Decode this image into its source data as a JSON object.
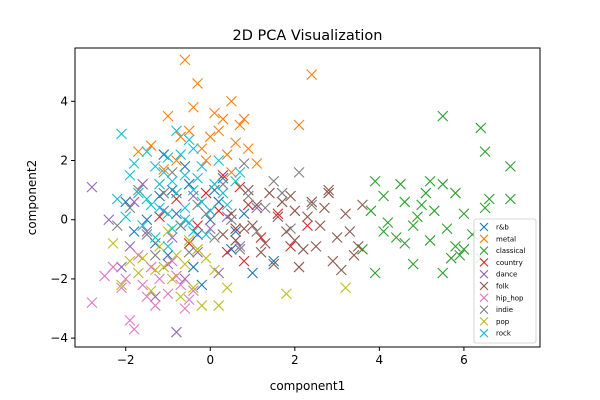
{
  "chart_data": {
    "type": "scatter",
    "title": "2D PCA Visualization",
    "xlabel": "component1",
    "ylabel": "component2",
    "xlim": [
      -3.2,
      7.8
    ],
    "ylim": [
      -4.3,
      5.8
    ],
    "xticks": [
      -2,
      0,
      2,
      4,
      6
    ],
    "yticks": [
      -4,
      -2,
      0,
      2,
      4
    ],
    "grid": false,
    "legend_position": "lower-right",
    "marker": "x",
    "series": [
      {
        "name": "r&b",
        "color": "#1f77b4",
        "points": [
          [
            -1.2,
            0.8
          ],
          [
            -0.8,
            0.2
          ],
          [
            -0.5,
            1.2
          ],
          [
            -1.5,
            0.0
          ],
          [
            -0.3,
            -0.5
          ],
          [
            0.2,
            0.6
          ],
          [
            -1.0,
            -1.2
          ],
          [
            -0.6,
            1.8
          ],
          [
            0.0,
            0.0
          ],
          [
            -1.8,
            -0.4
          ],
          [
            0.5,
            -1.0
          ],
          [
            -0.9,
            1.0
          ],
          [
            -1.3,
            -0.8
          ],
          [
            0.3,
            1.4
          ],
          [
            -0.4,
            -1.6
          ],
          [
            0.8,
            0.2
          ],
          [
            -2.0,
            0.6
          ],
          [
            1.5,
            -1.4
          ],
          [
            -0.2,
            -2.2
          ],
          [
            -1.1,
            2.2
          ],
          [
            0.6,
            -0.4
          ],
          [
            1.0,
            -1.8
          ],
          [
            -0.7,
            -0.2
          ],
          [
            0.1,
            1.0
          ]
        ]
      },
      {
        "name": "metal",
        "color": "#ff7f0e",
        "points": [
          [
            -0.6,
            5.4
          ],
          [
            -0.3,
            4.6
          ],
          [
            2.4,
            4.9
          ],
          [
            0.5,
            4.0
          ],
          [
            0.3,
            3.4
          ],
          [
            0.7,
            3.2
          ],
          [
            -1.0,
            3.5
          ],
          [
            -0.5,
            3.0
          ],
          [
            0.0,
            2.8
          ],
          [
            2.1,
            3.2
          ],
          [
            -0.2,
            2.4
          ],
          [
            0.4,
            2.2
          ],
          [
            -1.4,
            2.5
          ],
          [
            -0.8,
            2.0
          ],
          [
            0.6,
            2.6
          ],
          [
            1.1,
            1.9
          ],
          [
            -0.4,
            3.8
          ],
          [
            0.2,
            3.0
          ],
          [
            -1.7,
            2.3
          ],
          [
            0.9,
            2.4
          ],
          [
            -0.1,
            2.0
          ],
          [
            0.5,
            1.6
          ],
          [
            -0.7,
            2.8
          ],
          [
            0.8,
            3.4
          ],
          [
            -1.1,
            1.7
          ],
          [
            0.1,
            3.6
          ]
        ]
      },
      {
        "name": "classical",
        "color": "#2ca02c",
        "points": [
          [
            5.5,
            3.5
          ],
          [
            6.4,
            3.1
          ],
          [
            6.5,
            2.3
          ],
          [
            7.1,
            1.8
          ],
          [
            3.9,
            1.3
          ],
          [
            4.5,
            1.2
          ],
          [
            5.2,
            1.3
          ],
          [
            5.5,
            1.2
          ],
          [
            5.8,
            0.9
          ],
          [
            4.1,
            0.8
          ],
          [
            4.6,
            0.6
          ],
          [
            6.6,
            0.7
          ],
          [
            7.1,
            0.7
          ],
          [
            5.0,
            0.5
          ],
          [
            3.8,
            0.3
          ],
          [
            4.9,
            0.1
          ],
          [
            5.3,
            0.3
          ],
          [
            6.0,
            0.2
          ],
          [
            4.2,
            -0.1
          ],
          [
            4.8,
            -0.2
          ],
          [
            5.6,
            -0.3
          ],
          [
            6.2,
            -0.5
          ],
          [
            4.4,
            -0.6
          ],
          [
            4.6,
            -0.8
          ],
          [
            5.2,
            -0.7
          ],
          [
            5.8,
            -0.9
          ],
          [
            6.0,
            -1.0
          ],
          [
            5.7,
            -1.3
          ],
          [
            5.9,
            -1.2
          ],
          [
            6.4,
            -1.3
          ],
          [
            4.8,
            -1.5
          ],
          [
            5.5,
            -1.8
          ],
          [
            3.9,
            -1.8
          ],
          [
            3.6,
            -1.0
          ],
          [
            4.1,
            -0.4
          ],
          [
            6.5,
            0.4
          ],
          [
            5.1,
            0.9
          ]
        ]
      },
      {
        "name": "country",
        "color": "#d62728",
        "points": [
          [
            0.7,
            1.1
          ],
          [
            0.2,
            0.3
          ],
          [
            -0.3,
            -0.2
          ],
          [
            0.9,
            0.5
          ],
          [
            -0.8,
            0.7
          ],
          [
            1.2,
            -0.6
          ],
          [
            0.4,
            -1.1
          ],
          [
            -0.1,
            0.9
          ],
          [
            0.6,
            -0.3
          ],
          [
            1.6,
            0.2
          ],
          [
            -0.5,
            -0.8
          ],
          [
            0.3,
            1.5
          ],
          [
            1.9,
            -0.9
          ],
          [
            -1.2,
            0.1
          ],
          [
            0.8,
            -1.4
          ],
          [
            2.3,
            -0.2
          ]
        ]
      },
      {
        "name": "dance",
        "color": "#9467bd",
        "points": [
          [
            -2.8,
            1.1
          ],
          [
            -2.4,
            0.0
          ],
          [
            -1.9,
            -0.9
          ],
          [
            -1.5,
            -0.4
          ],
          [
            -1.0,
            -1.5
          ],
          [
            -0.8,
            -3.8
          ],
          [
            -1.3,
            -2.6
          ],
          [
            -0.6,
            -2.0
          ],
          [
            -1.8,
            0.6
          ],
          [
            -0.4,
            0.8
          ],
          [
            0.0,
            -0.3
          ],
          [
            0.4,
            0.1
          ],
          [
            -1.1,
            0.3
          ],
          [
            -2.1,
            -1.6
          ],
          [
            0.7,
            -0.9
          ],
          [
            -0.3,
            -1.1
          ],
          [
            -1.6,
            1.2
          ],
          [
            1.1,
            0.4
          ],
          [
            -0.9,
            -0.6
          ],
          [
            0.2,
            -1.8
          ]
        ]
      },
      {
        "name": "folk",
        "color": "#8c564b",
        "points": [
          [
            0.5,
            0.2
          ],
          [
            0.8,
            -0.3
          ],
          [
            1.1,
            0.5
          ],
          [
            1.3,
            -0.8
          ],
          [
            1.6,
            0.1
          ],
          [
            1.8,
            -0.4
          ],
          [
            2.0,
            0.3
          ],
          [
            2.2,
            -1.0
          ],
          [
            2.4,
            0.6
          ],
          [
            2.6,
            -0.2
          ],
          [
            2.8,
            0.9
          ],
          [
            3.0,
            -0.6
          ],
          [
            3.2,
            0.2
          ],
          [
            3.4,
            -1.2
          ],
          [
            3.6,
            0.5
          ],
          [
            1.5,
            -1.5
          ],
          [
            2.1,
            -1.6
          ],
          [
            2.9,
            -1.4
          ],
          [
            3.1,
            -1.7
          ],
          [
            1.0,
            -0.2
          ],
          [
            1.9,
            0.8
          ],
          [
            2.5,
            -0.9
          ],
          [
            0.9,
            1.0
          ],
          [
            1.7,
            0.6
          ],
          [
            2.3,
            0.1
          ],
          [
            3.3,
            -0.4
          ],
          [
            1.2,
            -1.1
          ],
          [
            2.7,
            0.4
          ],
          [
            0.6,
            -0.7
          ],
          [
            2.0,
            -0.7
          ],
          [
            3.5,
            -0.9
          ],
          [
            1.4,
            0.9
          ],
          [
            2.8,
            1.0
          ],
          [
            0.3,
            -0.5
          ]
        ]
      },
      {
        "name": "hip_hop",
        "color": "#e377c2",
        "points": [
          [
            -2.8,
            -2.8
          ],
          [
            -2.5,
            -1.9
          ],
          [
            -2.1,
            -2.3
          ],
          [
            -1.9,
            -3.4
          ],
          [
            -1.8,
            -3.7
          ],
          [
            -1.6,
            -2.2
          ],
          [
            -1.4,
            -1.6
          ],
          [
            -1.3,
            -2.9
          ],
          [
            -1.0,
            -2.5
          ],
          [
            -0.8,
            -1.9
          ],
          [
            -0.6,
            -3.0
          ],
          [
            -0.4,
            -2.4
          ],
          [
            -2.3,
            -1.6
          ],
          [
            -1.7,
            -1.2
          ],
          [
            -1.2,
            -2.0
          ],
          [
            -0.9,
            -1.4
          ],
          [
            -0.5,
            -2.7
          ],
          [
            -1.5,
            -2.6
          ],
          [
            -2.0,
            -2.0
          ],
          [
            -0.7,
            -2.2
          ]
        ]
      },
      {
        "name": "indie",
        "color": "#7f7f7f",
        "points": [
          [
            2.1,
            1.6
          ],
          [
            1.7,
            0.9
          ],
          [
            1.3,
            0.4
          ],
          [
            0.9,
            0.8
          ],
          [
            0.5,
            0.0
          ],
          [
            0.1,
            -0.6
          ],
          [
            -0.3,
            0.5
          ],
          [
            -0.7,
            -0.2
          ],
          [
            -1.1,
            0.9
          ],
          [
            -1.5,
            -0.5
          ],
          [
            -1.9,
            0.4
          ],
          [
            -2.2,
            -0.2
          ],
          [
            0.3,
            1.2
          ],
          [
            0.7,
            -1.0
          ],
          [
            1.1,
            -0.4
          ],
          [
            1.5,
            1.3
          ],
          [
            -0.5,
            -1.1
          ],
          [
            -0.9,
            1.6
          ],
          [
            -1.3,
            -1.2
          ],
          [
            2.4,
            0.5
          ],
          [
            1.9,
            -0.3
          ],
          [
            0.8,
            1.9
          ],
          [
            -0.1,
            0.2
          ],
          [
            -1.7,
            1.0
          ]
        ]
      },
      {
        "name": "pop",
        "color": "#bcbd22",
        "points": [
          [
            -2.1,
            -2.2
          ],
          [
            -1.7,
            -1.8
          ],
          [
            -1.4,
            -2.4
          ],
          [
            -1.1,
            -1.6
          ],
          [
            -0.9,
            -2.0
          ],
          [
            -0.6,
            -1.5
          ],
          [
            -0.4,
            -2.3
          ],
          [
            -0.2,
            -2.9
          ],
          [
            0.2,
            -2.9
          ],
          [
            -0.8,
            -1.2
          ],
          [
            -1.2,
            -0.9
          ],
          [
            -1.6,
            -1.3
          ],
          [
            -0.3,
            -1.0
          ],
          [
            0.1,
            -1.7
          ],
          [
            -1.9,
            -1.4
          ],
          [
            -0.7,
            -2.6
          ],
          [
            1.8,
            -2.5
          ],
          [
            3.2,
            -2.3
          ],
          [
            -1.0,
            -0.4
          ],
          [
            -0.5,
            -0.7
          ],
          [
            -2.3,
            -0.8
          ],
          [
            -1.3,
            -1.7
          ],
          [
            0.4,
            -2.3
          ],
          [
            -0.1,
            -1.3
          ]
        ]
      },
      {
        "name": "rock",
        "color": "#17becf",
        "points": [
          [
            -2.1,
            2.9
          ],
          [
            -1.5,
            2.3
          ],
          [
            -1.3,
            1.8
          ],
          [
            -1.0,
            2.1
          ],
          [
            -0.8,
            3.0
          ],
          [
            -0.6,
            1.5
          ],
          [
            -0.4,
            2.4
          ],
          [
            -0.2,
            1.8
          ],
          [
            0.1,
            1.2
          ],
          [
            -1.9,
            1.5
          ],
          [
            -1.7,
            0.9
          ],
          [
            -1.4,
            0.5
          ],
          [
            -1.2,
            1.2
          ],
          [
            -1.0,
            0.2
          ],
          [
            -0.8,
            0.9
          ],
          [
            -0.6,
            0.4
          ],
          [
            -0.4,
            1.0
          ],
          [
            -0.2,
            0.6
          ],
          [
            0.0,
            0.3
          ],
          [
            0.3,
            0.9
          ],
          [
            0.6,
            1.3
          ],
          [
            -1.6,
            -0.2
          ],
          [
            -1.3,
            -0.6
          ],
          [
            -0.9,
            -0.3
          ],
          [
            -0.5,
            -0.1
          ],
          [
            -0.1,
            -0.5
          ],
          [
            -2.0,
            0.1
          ],
          [
            -1.1,
            1.6
          ],
          [
            -0.7,
            2.2
          ],
          [
            -0.3,
            1.4
          ],
          [
            0.4,
            0.5
          ],
          [
            -1.5,
            0.7
          ],
          [
            -0.9,
            1.3
          ],
          [
            -0.6,
            0.0
          ],
          [
            -1.2,
            0.4
          ],
          [
            -0.4,
            -0.4
          ],
          [
            0.2,
            2.0
          ],
          [
            -1.8,
            1.9
          ],
          [
            -0.5,
            2.7
          ],
          [
            0.7,
            1.6
          ],
          [
            -2.2,
            0.7
          ],
          [
            -1.0,
            -0.9
          ]
        ]
      }
    ]
  }
}
